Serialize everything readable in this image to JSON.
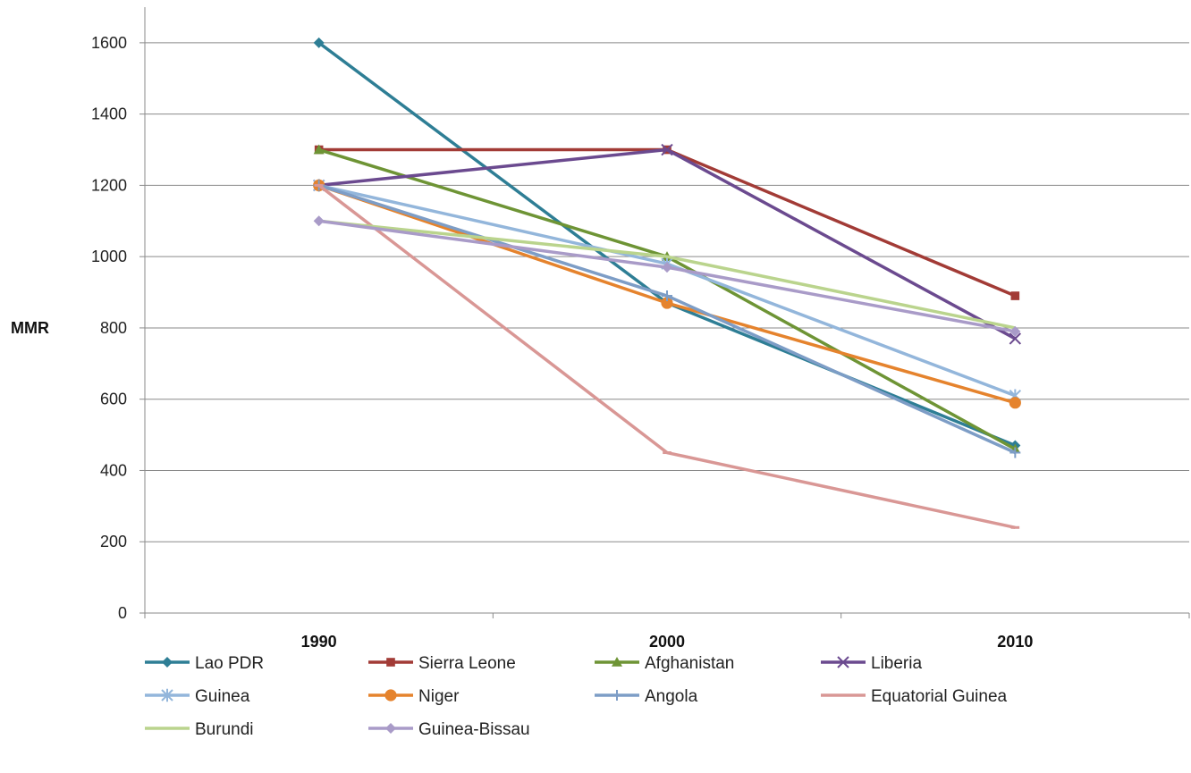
{
  "chart_data": {
    "type": "line",
    "title": "",
    "xlabel": "",
    "ylabel": "MMR",
    "ylim": [
      0,
      1700
    ],
    "yticks": [
      0,
      200,
      400,
      600,
      800,
      1000,
      1200,
      1400,
      1600
    ],
    "categories": [
      "1990",
      "2000",
      "2010"
    ],
    "grid": "horizontal",
    "legend_position": "bottom",
    "series": [
      {
        "name": "Lao PDR",
        "values": [
          1600,
          870,
          470
        ],
        "color": "#2E7E95",
        "marker": "diamond"
      },
      {
        "name": "Sierra Leone",
        "values": [
          1300,
          1300,
          890
        ],
        "color": "#A23B36",
        "marker": "square"
      },
      {
        "name": "Afghanistan",
        "values": [
          1300,
          1000,
          460
        ],
        "color": "#6E9435",
        "marker": "triangle"
      },
      {
        "name": "Liberia",
        "values": [
          1200,
          1300,
          770
        ],
        "color": "#6B4A8F",
        "marker": "x"
      },
      {
        "name": "Guinea",
        "values": [
          1200,
          980,
          610
        ],
        "color": "#93B6DB",
        "marker": "star"
      },
      {
        "name": "Niger",
        "values": [
          1200,
          870,
          590
        ],
        "color": "#E5832D",
        "marker": "circle"
      },
      {
        "name": "Angola",
        "values": [
          1200,
          890,
          450
        ],
        "color": "#7D9DC6",
        "marker": "plus"
      },
      {
        "name": "Equatorial Guinea",
        "values": [
          1200,
          450,
          240
        ],
        "color": "#D99795",
        "marker": "dash"
      },
      {
        "name": "Burundi",
        "values": [
          1100,
          1000,
          800
        ],
        "color": "#BAD48D",
        "marker": "none"
      },
      {
        "name": "Guinea-Bissau",
        "values": [
          1100,
          970,
          790
        ],
        "color": "#A99BC8",
        "marker": "diamond"
      }
    ]
  }
}
